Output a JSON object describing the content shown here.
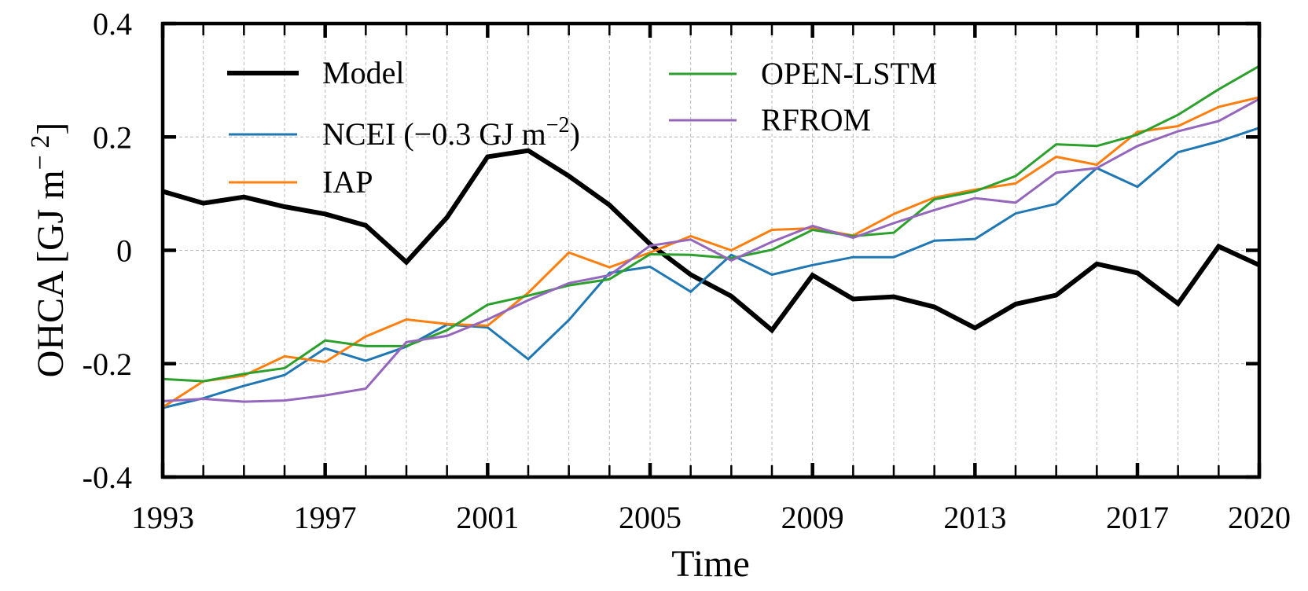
{
  "chart_data": {
    "type": "line",
    "title": "",
    "xlabel": "Time",
    "ylabel": "OHCA [GJ m⁻²]",
    "ylabel_parts": {
      "main": "OHCA [GJ m",
      "sup": "− 2",
      "close": "]"
    },
    "xlim": [
      1993,
      2020
    ],
    "ylim": [
      -0.4,
      0.4
    ],
    "x_ticks": [
      1993,
      1997,
      2001,
      2005,
      2009,
      2013,
      2017,
      2020
    ],
    "x_tick_labels": [
      "1993",
      "1997",
      "2001",
      "2005",
      "2009",
      "2013",
      "2017",
      "2020"
    ],
    "y_ticks": [
      -0.4,
      -0.2,
      0,
      0.2,
      0.4
    ],
    "y_tick_labels": [
      "-0.4",
      "-0.2",
      "0",
      "0.2",
      "0.4"
    ],
    "grid": true,
    "legend_placement": "top-left (two columns)",
    "x": [
      1993,
      1994,
      1995,
      1996,
      1997,
      1998,
      1999,
      2000,
      2001,
      2002,
      2003,
      2004,
      2005,
      2006,
      2007,
      2008,
      2009,
      2010,
      2011,
      2012,
      2013,
      2014,
      2015,
      2016,
      2017,
      2018,
      2019,
      2020
    ],
    "series": [
      {
        "name": "Model",
        "color": "#000000",
        "bold": true,
        "values": [
          0.104,
          0.083,
          0.094,
          0.077,
          0.064,
          0.044,
          -0.021,
          0.058,
          0.165,
          0.176,
          0.131,
          0.08,
          0.011,
          -0.043,
          -0.081,
          -0.141,
          -0.044,
          -0.086,
          -0.082,
          -0.1,
          -0.137,
          -0.095,
          -0.079,
          -0.024,
          -0.04,
          -0.094,
          0.007,
          -0.026
        ]
      },
      {
        "name": "NCEI",
        "legend_label": "NCEI (−0.3 GJ m",
        "legend_sup": "−2",
        "legend_close": ")",
        "color": "#1f77b4",
        "values": [
          -0.278,
          -0.261,
          -0.239,
          -0.22,
          -0.173,
          -0.195,
          -0.17,
          -0.131,
          -0.136,
          -0.192,
          -0.123,
          -0.04,
          -0.029,
          -0.073,
          -0.008,
          -0.043,
          -0.026,
          -0.012,
          -0.012,
          0.017,
          0.02,
          0.065,
          0.082,
          0.145,
          0.112,
          0.173,
          0.192,
          0.216
        ]
      },
      {
        "name": "IAP",
        "legend_label": "IAP",
        "color": "#ff7f0e",
        "values": [
          -0.277,
          -0.231,
          -0.221,
          -0.187,
          -0.197,
          -0.152,
          -0.122,
          -0.13,
          -0.133,
          -0.075,
          -0.004,
          -0.03,
          -0.004,
          0.025,
          0.0,
          0.036,
          0.039,
          0.026,
          0.064,
          0.093,
          0.107,
          0.118,
          0.165,
          0.151,
          0.209,
          0.219,
          0.253,
          0.27
        ]
      },
      {
        "name": "OPEN-LSTM",
        "legend_label": "OPEN-LSTM",
        "color": "#2ca02c",
        "values": [
          -0.227,
          -0.231,
          -0.218,
          -0.208,
          -0.159,
          -0.169,
          -0.169,
          -0.141,
          -0.096,
          -0.08,
          -0.062,
          -0.051,
          -0.007,
          -0.008,
          -0.014,
          0.001,
          0.036,
          0.025,
          0.031,
          0.09,
          0.104,
          0.131,
          0.187,
          0.184,
          0.204,
          0.239,
          0.284,
          0.325
        ]
      },
      {
        "name": "RFROM",
        "legend_label": "RFROM",
        "color": "#9467bd",
        "values": [
          -0.266,
          -0.262,
          -0.267,
          -0.265,
          -0.256,
          -0.244,
          -0.162,
          -0.151,
          -0.122,
          -0.088,
          -0.058,
          -0.044,
          0.008,
          0.019,
          -0.018,
          0.015,
          0.043,
          0.022,
          0.048,
          0.071,
          0.092,
          0.084,
          0.137,
          0.145,
          0.184,
          0.21,
          0.228,
          0.267
        ]
      }
    ],
    "legend": [
      {
        "label": "Model",
        "series": 0
      },
      {
        "label": "NCEI (−0.3 GJ m⁻²)",
        "series": 1
      },
      {
        "label": "IAP",
        "series": 2
      },
      {
        "label": "OPEN-LSTM",
        "series": 3
      },
      {
        "label": "RFROM",
        "series": 4
      }
    ]
  }
}
